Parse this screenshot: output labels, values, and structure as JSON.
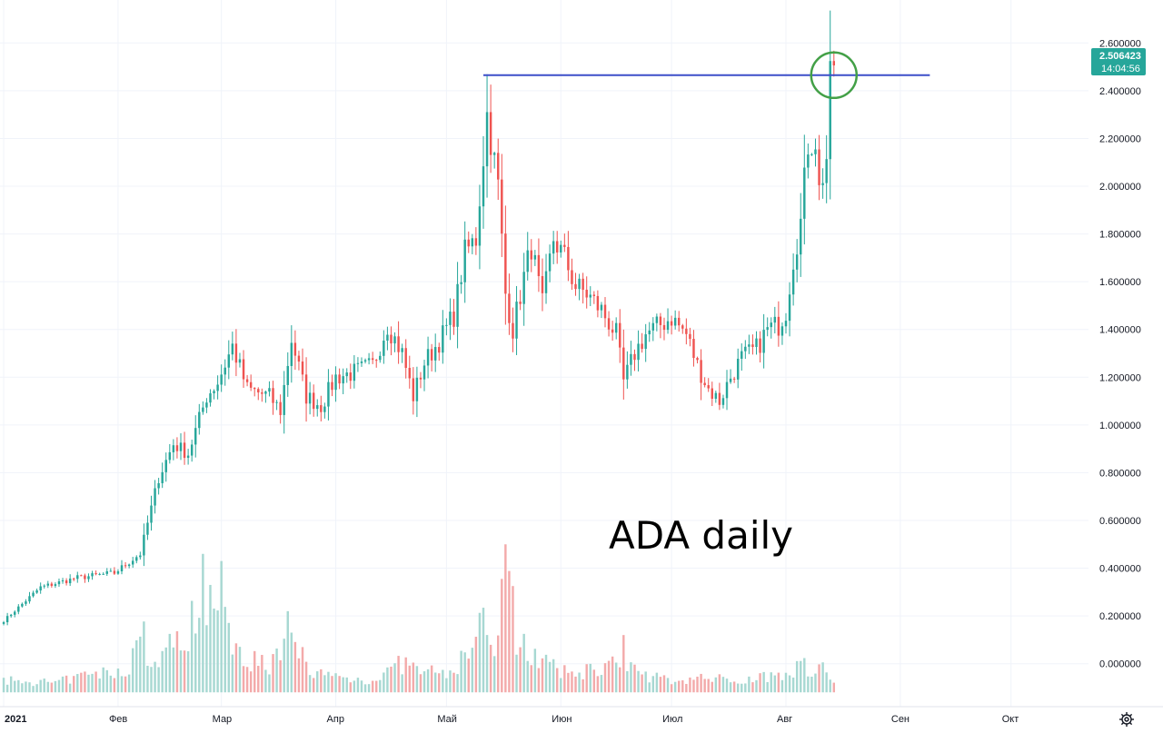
{
  "chart_data": {
    "type": "candlestick",
    "annotation": "ADA daily",
    "y_ticks": [
      "2.600000",
      "2.400000",
      "2.200000",
      "2.000000",
      "1.800000",
      "1.600000",
      "1.400000",
      "1.200000",
      "1.000000",
      "0.800000",
      "0.600000",
      "0.400000",
      "0.200000",
      "0.000000"
    ],
    "y_tick_values": [
      2.6,
      2.4,
      2.2,
      2.0,
      1.8,
      1.6,
      1.4,
      1.2,
      1.0,
      0.8,
      0.6,
      0.4,
      0.2,
      0.0
    ],
    "ylim": [
      -0.18,
      2.78
    ],
    "x_labels": [
      "2021",
      "Фев",
      "Мар",
      "Апр",
      "Май",
      "Июн",
      "Июл",
      "Авг",
      "Сен",
      "Окт"
    ],
    "x_label_days": [
      0,
      31,
      59,
      90,
      120,
      151,
      181,
      212,
      243,
      273
    ],
    "xlim": [
      -1,
      294
    ],
    "current_price": "2.506423",
    "countdown": "14:04:56",
    "resistance_level": 2.465,
    "colors": {
      "up": "#26a69a",
      "down": "#ef5350",
      "volume_up": "#a7d8d2",
      "volume_down": "#f3aaaa",
      "resistance": "#3d4fc9",
      "highlight_circle": "#43a047",
      "grid": "#f0f3fa"
    },
    "anchors": [
      [
        0,
        0.18
      ],
      [
        10,
        0.32
      ],
      [
        20,
        0.36
      ],
      [
        30,
        0.38
      ],
      [
        37,
        0.46
      ],
      [
        42,
        0.78
      ],
      [
        46,
        0.92
      ],
      [
        50,
        0.88
      ],
      [
        55,
        1.12
      ],
      [
        58,
        1.18
      ],
      [
        62,
        1.33
      ],
      [
        66,
        1.15
      ],
      [
        72,
        1.12
      ],
      [
        75,
        1.06
      ],
      [
        78,
        1.36
      ],
      [
        82,
        1.12
      ],
      [
        86,
        1.08
      ],
      [
        90,
        1.2
      ],
      [
        95,
        1.22
      ],
      [
        100,
        1.25
      ],
      [
        104,
        1.42
      ],
      [
        108,
        1.3
      ],
      [
        111,
        1.12
      ],
      [
        114,
        1.26
      ],
      [
        118,
        1.35
      ],
      [
        122,
        1.46
      ],
      [
        125,
        1.72
      ],
      [
        128,
        1.78
      ],
      [
        131,
        2.3
      ],
      [
        134,
        2.0
      ],
      [
        136,
        1.55
      ],
      [
        138,
        1.4
      ],
      [
        141,
        1.62
      ],
      [
        143,
        1.75
      ],
      [
        146,
        1.5
      ],
      [
        149,
        1.78
      ],
      [
        152,
        1.7
      ],
      [
        155,
        1.58
      ],
      [
        158,
        1.55
      ],
      [
        162,
        1.48
      ],
      [
        166,
        1.38
      ],
      [
        168,
        1.18
      ],
      [
        171,
        1.3
      ],
      [
        174,
        1.38
      ],
      [
        178,
        1.42
      ],
      [
        181,
        1.45
      ],
      [
        185,
        1.38
      ],
      [
        188,
        1.25
      ],
      [
        191,
        1.15
      ],
      [
        194,
        1.1
      ],
      [
        197,
        1.2
      ],
      [
        200,
        1.28
      ],
      [
        204,
        1.32
      ],
      [
        207,
        1.4
      ],
      [
        210,
        1.42
      ],
      [
        212,
        1.48
      ],
      [
        214,
        1.7
      ],
      [
        216,
        1.85
      ],
      [
        218,
        2.18
      ],
      [
        220,
        2.2
      ],
      [
        221,
        1.98
      ],
      [
        222,
        2.05
      ],
      [
        223,
        2.12
      ],
      [
        224,
        2.44
      ],
      [
        225,
        2.506
      ]
    ],
    "volume_anchors": [
      [
        0,
        0.05
      ],
      [
        14,
        0.04
      ],
      [
        22,
        0.07
      ],
      [
        33,
        0.09
      ],
      [
        38,
        0.25
      ],
      [
        40,
        0.1
      ],
      [
        46,
        0.2
      ],
      [
        52,
        0.3
      ],
      [
        56,
        0.38
      ],
      [
        59,
        0.32
      ],
      [
        66,
        0.14
      ],
      [
        72,
        0.12
      ],
      [
        78,
        0.2
      ],
      [
        85,
        0.08
      ],
      [
        92,
        0.06
      ],
      [
        100,
        0.05
      ],
      [
        108,
        0.12
      ],
      [
        113,
        0.09
      ],
      [
        120,
        0.07
      ],
      [
        126,
        0.17
      ],
      [
        130,
        0.28
      ],
      [
        133,
        0.22
      ],
      [
        136,
        0.48
      ],
      [
        139,
        0.25
      ],
      [
        144,
        0.15
      ],
      [
        151,
        0.08
      ],
      [
        158,
        0.09
      ],
      [
        166,
        0.12
      ],
      [
        172,
        0.08
      ],
      [
        180,
        0.05
      ],
      [
        190,
        0.06
      ],
      [
        200,
        0.05
      ],
      [
        210,
        0.08
      ],
      [
        216,
        0.11
      ],
      [
        222,
        0.1
      ],
      [
        225,
        0.04
      ]
    ],
    "volume_spikes": [
      [
        54,
        0.58
      ],
      [
        56,
        0.45
      ],
      [
        59,
        0.55
      ],
      [
        77,
        0.34
      ],
      [
        136,
        0.62
      ],
      [
        168,
        0.24
      ]
    ],
    "volume_axis_offset": -0.12
  },
  "ui": {
    "settings_icon": "gear-icon"
  }
}
